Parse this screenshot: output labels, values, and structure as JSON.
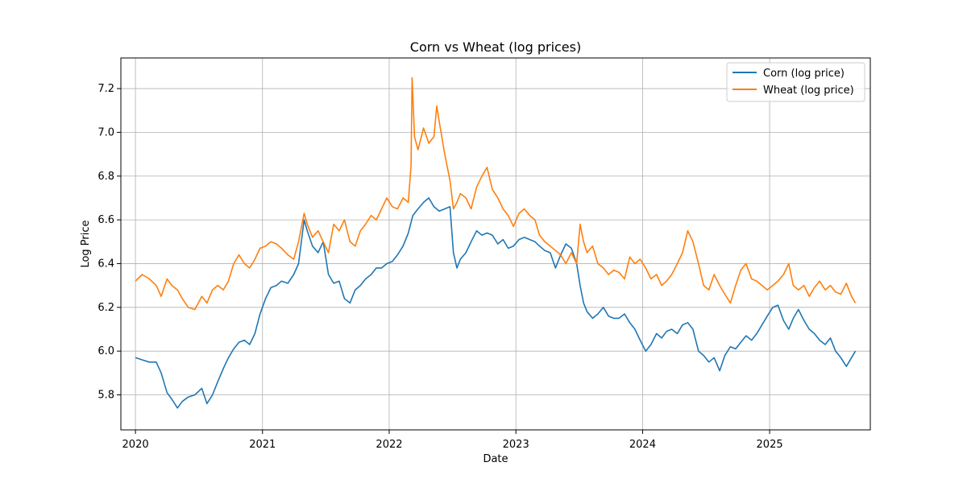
{
  "chart_data": {
    "type": "line",
    "title": "Corn vs Wheat (log prices)",
    "xlabel": "Date",
    "ylabel": "Log Price",
    "xlim": [
      "2019-11-20",
      "2025-10-18"
    ],
    "ylim": [
      5.64,
      7.34
    ],
    "x_ticks": [
      "2020",
      "2021",
      "2022",
      "2023",
      "2024",
      "2025"
    ],
    "y_ticks": [
      "5.8",
      "6.0",
      "6.2",
      "6.4",
      "6.6",
      "6.8",
      "7.0",
      "7.2"
    ],
    "grid": true,
    "legend_position": "top-right",
    "series": [
      {
        "name": "Corn (log price)",
        "color": "#1f77b4",
        "x": [
          "2020-01-01",
          "2020-01-20",
          "2020-02-10",
          "2020-03-01",
          "2020-03-15",
          "2020-04-01",
          "2020-04-15",
          "2020-05-01",
          "2020-05-15",
          "2020-06-01",
          "2020-06-20",
          "2020-07-10",
          "2020-07-25",
          "2020-08-10",
          "2020-08-25",
          "2020-09-10",
          "2020-09-25",
          "2020-10-10",
          "2020-10-25",
          "2020-11-10",
          "2020-11-25",
          "2020-12-10",
          "2020-12-25",
          "2021-01-10",
          "2021-01-25",
          "2021-02-10",
          "2021-02-25",
          "2021-03-15",
          "2021-04-01",
          "2021-04-15",
          "2021-05-01",
          "2021-05-10",
          "2021-05-25",
          "2021-06-10",
          "2021-06-25",
          "2021-07-10",
          "2021-07-25",
          "2021-08-10",
          "2021-08-25",
          "2021-09-10",
          "2021-09-25",
          "2021-10-10",
          "2021-10-25",
          "2021-11-10",
          "2021-11-25",
          "2021-12-10",
          "2021-12-25",
          "2022-01-10",
          "2022-01-25",
          "2022-02-10",
          "2022-02-25",
          "2022-03-10",
          "2022-03-25",
          "2022-04-10",
          "2022-04-25",
          "2022-05-10",
          "2022-05-25",
          "2022-06-10",
          "2022-06-25",
          "2022-07-05",
          "2022-07-15",
          "2022-07-25",
          "2022-08-10",
          "2022-08-25",
          "2022-09-10",
          "2022-09-25",
          "2022-10-10",
          "2022-10-25",
          "2022-11-10",
          "2022-11-25",
          "2022-12-10",
          "2022-12-25",
          "2023-01-10",
          "2023-01-25",
          "2023-02-10",
          "2023-02-25",
          "2023-03-10",
          "2023-03-25",
          "2023-04-10",
          "2023-04-25",
          "2023-05-10",
          "2023-05-25",
          "2023-06-10",
          "2023-06-25",
          "2023-07-05",
          "2023-07-15",
          "2023-07-25",
          "2023-08-10",
          "2023-08-25",
          "2023-09-10",
          "2023-09-25",
          "2023-10-10",
          "2023-10-25",
          "2023-11-10",
          "2023-11-25",
          "2023-12-10",
          "2023-12-25",
          "2024-01-10",
          "2024-01-25",
          "2024-02-10",
          "2024-02-25",
          "2024-03-10",
          "2024-03-25",
          "2024-04-10",
          "2024-04-25",
          "2024-05-10",
          "2024-05-25",
          "2024-06-10",
          "2024-06-25",
          "2024-07-10",
          "2024-07-25",
          "2024-08-10",
          "2024-08-25",
          "2024-09-10",
          "2024-09-25",
          "2024-10-10",
          "2024-10-25",
          "2024-11-10",
          "2024-11-25",
          "2024-12-10",
          "2024-12-25",
          "2025-01-10",
          "2025-01-25",
          "2025-02-10",
          "2025-02-25",
          "2025-03-10",
          "2025-03-25",
          "2025-04-10",
          "2025-04-25",
          "2025-05-10",
          "2025-05-25",
          "2025-06-10",
          "2025-06-25",
          "2025-07-10",
          "2025-07-25",
          "2025-08-10",
          "2025-08-25",
          "2025-09-05"
        ],
        "y": [
          5.97,
          5.96,
          5.95,
          5.95,
          5.9,
          5.81,
          5.78,
          5.74,
          5.77,
          5.79,
          5.8,
          5.83,
          5.76,
          5.8,
          5.86,
          5.92,
          5.97,
          6.01,
          6.04,
          6.05,
          6.03,
          6.08,
          6.17,
          6.24,
          6.29,
          6.3,
          6.32,
          6.31,
          6.35,
          6.4,
          6.6,
          6.55,
          6.48,
          6.45,
          6.5,
          6.35,
          6.31,
          6.32,
          6.24,
          6.22,
          6.28,
          6.3,
          6.33,
          6.35,
          6.38,
          6.38,
          6.4,
          6.41,
          6.44,
          6.48,
          6.54,
          6.62,
          6.65,
          6.68,
          6.7,
          6.66,
          6.64,
          6.65,
          6.66,
          6.45,
          6.38,
          6.42,
          6.45,
          6.5,
          6.55,
          6.53,
          6.54,
          6.53,
          6.49,
          6.51,
          6.47,
          6.48,
          6.51,
          6.52,
          6.51,
          6.5,
          6.48,
          6.46,
          6.45,
          6.38,
          6.44,
          6.49,
          6.47,
          6.4,
          6.3,
          6.22,
          6.18,
          6.15,
          6.17,
          6.2,
          6.16,
          6.15,
          6.15,
          6.17,
          6.13,
          6.1,
          6.05,
          6.0,
          6.03,
          6.08,
          6.06,
          6.09,
          6.1,
          6.08,
          6.12,
          6.13,
          6.1,
          6.0,
          5.98,
          5.95,
          5.97,
          5.91,
          5.98,
          6.02,
          6.01,
          6.04,
          6.07,
          6.05,
          6.08,
          6.12,
          6.16,
          6.2,
          6.21,
          6.14,
          6.1,
          6.15,
          6.19,
          6.14,
          6.1,
          6.08,
          6.05,
          6.03,
          6.06,
          6.0,
          5.97,
          5.93,
          5.97,
          6.0
        ]
      },
      {
        "name": "Wheat (log price)",
        "color": "#ff7f0e",
        "x": [
          "2020-01-01",
          "2020-01-20",
          "2020-02-10",
          "2020-03-01",
          "2020-03-15",
          "2020-04-01",
          "2020-04-15",
          "2020-05-01",
          "2020-05-15",
          "2020-06-01",
          "2020-06-20",
          "2020-07-10",
          "2020-07-25",
          "2020-08-10",
          "2020-08-25",
          "2020-09-10",
          "2020-09-25",
          "2020-10-10",
          "2020-10-25",
          "2020-11-10",
          "2020-11-25",
          "2020-12-10",
          "2020-12-25",
          "2021-01-10",
          "2021-01-25",
          "2021-02-10",
          "2021-02-25",
          "2021-03-15",
          "2021-04-01",
          "2021-04-15",
          "2021-05-01",
          "2021-05-10",
          "2021-05-25",
          "2021-06-10",
          "2021-06-25",
          "2021-07-10",
          "2021-07-25",
          "2021-08-10",
          "2021-08-25",
          "2021-09-10",
          "2021-09-25",
          "2021-10-10",
          "2021-10-25",
          "2021-11-10",
          "2021-11-25",
          "2021-12-10",
          "2021-12-25",
          "2022-01-10",
          "2022-01-25",
          "2022-02-10",
          "2022-02-25",
          "2022-03-05",
          "2022-03-08",
          "2022-03-15",
          "2022-03-25",
          "2022-04-10",
          "2022-04-25",
          "2022-05-10",
          "2022-05-18",
          "2022-05-25",
          "2022-06-10",
          "2022-06-25",
          "2022-07-05",
          "2022-07-15",
          "2022-07-25",
          "2022-08-10",
          "2022-08-25",
          "2022-09-10",
          "2022-09-25",
          "2022-10-10",
          "2022-10-25",
          "2022-11-10",
          "2022-11-25",
          "2022-12-10",
          "2022-12-25",
          "2023-01-10",
          "2023-01-25",
          "2023-02-10",
          "2023-02-25",
          "2023-03-10",
          "2023-03-25",
          "2023-04-10",
          "2023-04-25",
          "2023-05-10",
          "2023-05-25",
          "2023-06-10",
          "2023-06-25",
          "2023-07-05",
          "2023-07-15",
          "2023-07-25",
          "2023-08-10",
          "2023-08-25",
          "2023-09-10",
          "2023-09-25",
          "2023-10-10",
          "2023-10-25",
          "2023-11-10",
          "2023-11-25",
          "2023-12-10",
          "2023-12-25",
          "2024-01-10",
          "2024-01-25",
          "2024-02-10",
          "2024-02-25",
          "2024-03-10",
          "2024-03-25",
          "2024-04-10",
          "2024-04-25",
          "2024-05-10",
          "2024-05-25",
          "2024-06-10",
          "2024-06-25",
          "2024-07-10",
          "2024-07-25",
          "2024-08-10",
          "2024-08-25",
          "2024-09-10",
          "2024-09-25",
          "2024-10-10",
          "2024-10-25",
          "2024-11-10",
          "2024-11-25",
          "2024-12-10",
          "2024-12-25",
          "2025-01-10",
          "2025-01-25",
          "2025-02-10",
          "2025-02-25",
          "2025-03-10",
          "2025-03-25",
          "2025-04-10",
          "2025-04-25",
          "2025-05-10",
          "2025-05-25",
          "2025-06-10",
          "2025-06-25",
          "2025-07-10",
          "2025-07-25",
          "2025-08-10",
          "2025-08-25",
          "2025-09-05"
        ],
        "y": [
          6.32,
          6.35,
          6.33,
          6.3,
          6.25,
          6.33,
          6.3,
          6.28,
          6.24,
          6.2,
          6.19,
          6.25,
          6.22,
          6.28,
          6.3,
          6.28,
          6.32,
          6.4,
          6.44,
          6.4,
          6.38,
          6.42,
          6.47,
          6.48,
          6.5,
          6.49,
          6.47,
          6.44,
          6.42,
          6.5,
          6.63,
          6.58,
          6.52,
          6.55,
          6.5,
          6.45,
          6.58,
          6.55,
          6.6,
          6.5,
          6.48,
          6.55,
          6.58,
          6.62,
          6.6,
          6.65,
          6.7,
          6.66,
          6.65,
          6.7,
          6.68,
          6.85,
          7.25,
          6.98,
          6.92,
          7.02,
          6.95,
          6.98,
          7.12,
          7.05,
          6.9,
          6.78,
          6.65,
          6.68,
          6.72,
          6.7,
          6.65,
          6.75,
          6.8,
          6.84,
          6.74,
          6.7,
          6.65,
          6.62,
          6.57,
          6.63,
          6.65,
          6.62,
          6.6,
          6.53,
          6.5,
          6.48,
          6.46,
          6.44,
          6.4,
          6.45,
          6.4,
          6.58,
          6.5,
          6.45,
          6.48,
          6.4,
          6.38,
          6.35,
          6.37,
          6.36,
          6.33,
          6.43,
          6.4,
          6.42,
          6.38,
          6.33,
          6.35,
          6.3,
          6.32,
          6.35,
          6.4,
          6.45,
          6.55,
          6.5,
          6.4,
          6.3,
          6.28,
          6.35,
          6.3,
          6.26,
          6.22,
          6.3,
          6.37,
          6.4,
          6.33,
          6.32,
          6.3,
          6.28,
          6.3,
          6.32,
          6.35,
          6.4,
          6.3,
          6.28,
          6.3,
          6.25,
          6.29,
          6.32,
          6.28,
          6.3,
          6.27,
          6.26,
          6.31,
          6.25,
          6.22
        ]
      }
    ]
  }
}
